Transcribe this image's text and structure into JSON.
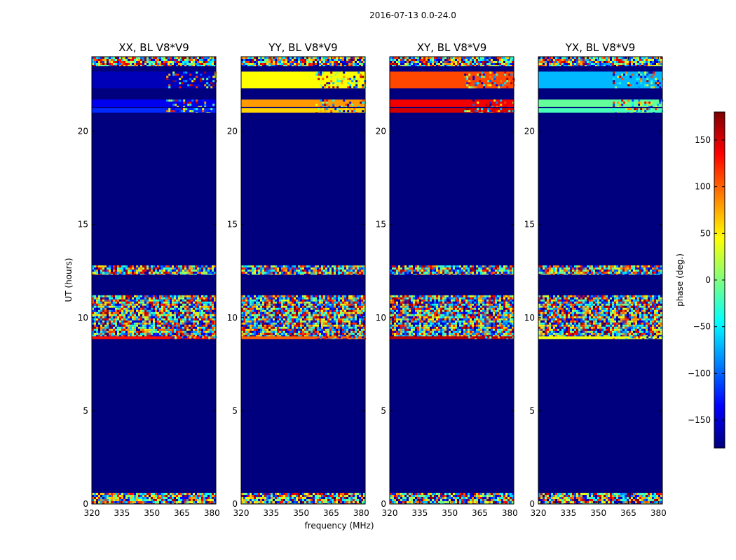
{
  "figure": {
    "suptitle": "2016-07-13 0.0-24.0",
    "xlabel": "frequency (MHz)",
    "ylabel": "UT (hours)"
  },
  "colorbar": {
    "label": "phase (deg.)",
    "range": [
      -180,
      180
    ],
    "ticks": [
      150,
      100,
      50,
      0,
      -50,
      -100,
      -150
    ],
    "tick_labels": [
      "150",
      "100",
      "50",
      "0",
      "−50",
      "−100",
      "−150"
    ],
    "colormap": [
      "#00007f",
      "#0000ff",
      "#007fff",
      "#00ffff",
      "#7fff7f",
      "#ffff00",
      "#ff7f00",
      "#ff0000",
      "#7f0000"
    ]
  },
  "chart_data": {
    "type": "heatmap",
    "x_ticks": [
      320,
      335,
      350,
      365,
      380
    ],
    "x_tick_labels": [
      "320",
      "335",
      "350",
      "365",
      "380"
    ],
    "xlim": [
      320,
      382
    ],
    "y_ticks": [
      0,
      5,
      10,
      15,
      20
    ],
    "y_tick_labels": [
      "0",
      "5",
      "10",
      "15",
      "20"
    ],
    "ylim": [
      0,
      24
    ],
    "background_phase": -180,
    "panels": [
      {
        "title": "XX, BL V8*V9",
        "bands": [
          {
            "from": 0.0,
            "to": 0.6,
            "kind": "noise"
          },
          {
            "from": 8.85,
            "to": 9.0,
            "kind": "line",
            "phase": 130
          },
          {
            "from": 9.0,
            "to": 11.2,
            "kind": "noise"
          },
          {
            "from": 12.3,
            "to": 12.8,
            "kind": "noise"
          },
          {
            "from": 21.0,
            "to": 21.25,
            "kind": "line",
            "phase": -120
          },
          {
            "from": 21.3,
            "to": 21.7,
            "kind": "line",
            "phase": -140
          },
          {
            "from": 22.3,
            "to": 23.2,
            "kind": "line",
            "phase": -160
          },
          {
            "from": 23.5,
            "to": 24.0,
            "kind": "noise"
          }
        ]
      },
      {
        "title": "YY, BL V8*V9",
        "bands": [
          {
            "from": 0.0,
            "to": 0.6,
            "kind": "noise"
          },
          {
            "from": 8.85,
            "to": 9.0,
            "kind": "line",
            "phase": 100
          },
          {
            "from": 9.0,
            "to": 11.2,
            "kind": "noise"
          },
          {
            "from": 12.3,
            "to": 12.8,
            "kind": "noise"
          },
          {
            "from": 21.0,
            "to": 21.25,
            "kind": "line",
            "phase": 60
          },
          {
            "from": 21.3,
            "to": 21.7,
            "kind": "line",
            "phase": 80
          },
          {
            "from": 22.3,
            "to": 23.2,
            "kind": "line",
            "phase": 45
          },
          {
            "from": 23.5,
            "to": 24.0,
            "kind": "noise"
          }
        ]
      },
      {
        "title": "XY, BL V8*V9",
        "bands": [
          {
            "from": 0.0,
            "to": 0.6,
            "kind": "noise"
          },
          {
            "from": 8.85,
            "to": 9.0,
            "kind": "line",
            "phase": 160
          },
          {
            "from": 9.0,
            "to": 11.2,
            "kind": "noise"
          },
          {
            "from": 12.3,
            "to": 12.8,
            "kind": "noise"
          },
          {
            "from": 21.0,
            "to": 21.25,
            "kind": "line",
            "phase": 150
          },
          {
            "from": 21.3,
            "to": 21.7,
            "kind": "line",
            "phase": 140
          },
          {
            "from": 22.3,
            "to": 23.2,
            "kind": "line",
            "phase": 110
          },
          {
            "from": 23.5,
            "to": 24.0,
            "kind": "noise"
          }
        ]
      },
      {
        "title": "YX, BL V8*V9",
        "bands": [
          {
            "from": 0.0,
            "to": 0.6,
            "kind": "noise"
          },
          {
            "from": 8.85,
            "to": 9.0,
            "kind": "line",
            "phase": 40
          },
          {
            "from": 9.0,
            "to": 11.2,
            "kind": "noise"
          },
          {
            "from": 12.3,
            "to": 12.8,
            "kind": "noise"
          },
          {
            "from": 21.0,
            "to": 21.25,
            "kind": "line",
            "phase": -20
          },
          {
            "from": 21.3,
            "to": 21.7,
            "kind": "line",
            "phase": -10
          },
          {
            "from": 22.3,
            "to": 23.2,
            "kind": "line",
            "phase": -70
          },
          {
            "from": 23.5,
            "to": 24.0,
            "kind": "noise"
          }
        ]
      }
    ]
  }
}
